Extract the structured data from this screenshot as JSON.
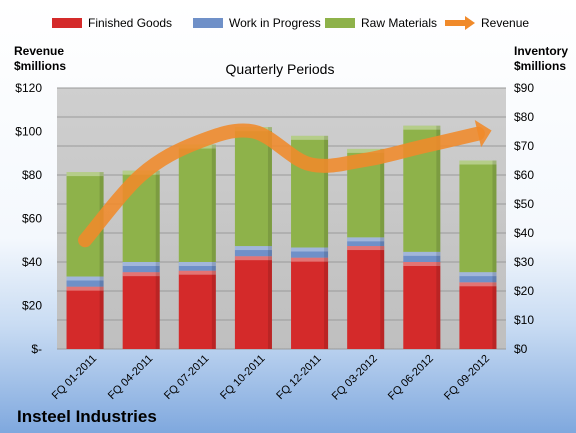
{
  "chart_data": {
    "type": "bar",
    "stacked": true,
    "subtitle": "Quarterly Periods",
    "company": "Insteel Industries",
    "left_axis": {
      "title_line1": "Revenue",
      "title_line2": "$millions",
      "min": 0,
      "max": 120,
      "ticks": [
        "$-",
        "$20",
        "$40",
        "$60",
        "$80",
        "$100",
        "$120"
      ]
    },
    "right_axis": {
      "title_line1": "Inventory",
      "title_line2": "$millions",
      "min": 0,
      "max": 90,
      "ticks": [
        "$0",
        "$10",
        "$20",
        "$30",
        "$40",
        "$50",
        "$60",
        "$70",
        "$80",
        "$90"
      ]
    },
    "categories": [
      "FQ 01-2011",
      "FQ 04-2011",
      "FQ 07-2011",
      "FQ 10-2011",
      "FQ 12-2011",
      "FQ 03-2012",
      "FQ 06-2012",
      "FQ 09-2012"
    ],
    "series": [
      {
        "name": "Finished Goods",
        "axis": "right",
        "color": "#d42a2a",
        "values": [
          21.5,
          26.5,
          27,
          32,
          31.5,
          35.5,
          30,
          23
        ]
      },
      {
        "name": "Work in Progress",
        "axis": "right",
        "color": "#6f90c8",
        "values": [
          3.5,
          3.5,
          3,
          3.5,
          3.5,
          3,
          3.5,
          3.5
        ]
      },
      {
        "name": "Raw Materials",
        "axis": "right",
        "color": "#8eb24a",
        "values": [
          36,
          31.5,
          40.5,
          41,
          38.5,
          30.5,
          43.5,
          38.5
        ]
      },
      {
        "name": "Revenue",
        "axis": "left",
        "color": "#f08a2a",
        "type": "line",
        "values": [
          50,
          80,
          95,
          100,
          85,
          87,
          93,
          99
        ]
      }
    ],
    "legend": {
      "position": "top"
    },
    "grid": true
  }
}
